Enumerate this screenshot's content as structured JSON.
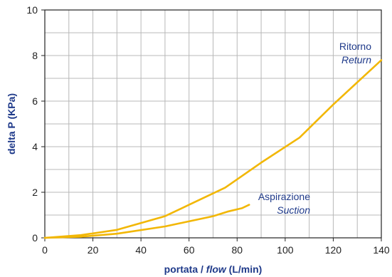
{
  "chart_data": {
    "type": "line",
    "title": "",
    "xlabel": {
      "pre": "portata / ",
      "italic": "flow",
      "post": " (L/min)"
    },
    "ylabel": "delta P (KPa)",
    "xlim": [
      0,
      140
    ],
    "ylim": [
      0,
      10
    ],
    "xticks": [
      0,
      20,
      40,
      60,
      80,
      100,
      120,
      140
    ],
    "yticks": [
      0,
      2,
      4,
      6,
      8,
      10
    ],
    "grid": true,
    "series": [
      {
        "label_it": "Ritorno",
        "label_en": "Return",
        "color": "#f2b705",
        "x": [
          0,
          15,
          30,
          50,
          60,
          75,
          90,
          106,
          120,
          140
        ],
        "y": [
          0,
          0.12,
          0.35,
          0.95,
          1.45,
          2.2,
          3.3,
          4.4,
          5.85,
          7.8
        ]
      },
      {
        "label_it": "Aspirazione",
        "label_en": "Suction",
        "color": "#f2b705",
        "x": [
          0,
          15,
          30,
          50,
          70,
          76,
          82,
          85
        ],
        "y": [
          0,
          0.05,
          0.18,
          0.5,
          0.95,
          1.15,
          1.3,
          1.45
        ]
      }
    ]
  },
  "colors": {
    "grid": "#b8b8b8",
    "axis": "#222222",
    "label": "#1f3a8a"
  }
}
